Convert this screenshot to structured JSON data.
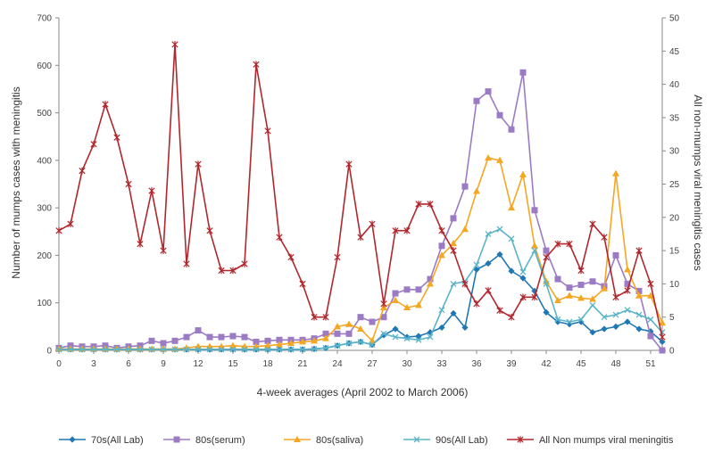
{
  "chart_data": {
    "type": "line",
    "xlabel": "4-week averages (April 2002 to March 2006)",
    "ylabel_left": "Number of mumps cases with meningitis",
    "ylabel_right": "All non-mumps viral meningitis cases",
    "xlim": [
      0,
      52
    ],
    "ylim_left": [
      0,
      700
    ],
    "ylim_right": [
      0,
      50
    ],
    "x_ticks": [
      "0",
      "3",
      "6",
      "9",
      "12",
      "15",
      "18",
      "21",
      "24",
      "27",
      "30",
      "33",
      "36",
      "39",
      "42",
      "45",
      "48",
      "51"
    ],
    "y_left_ticks": [
      "0",
      "100",
      "200",
      "300",
      "400",
      "500",
      "600",
      "700"
    ],
    "y_right_ticks": [
      "0",
      "5",
      "10",
      "15",
      "20",
      "25",
      "30",
      "35",
      "40",
      "45",
      "50"
    ],
    "grid": false,
    "legend_position": "bottom",
    "x": [
      0,
      1,
      2,
      3,
      4,
      5,
      6,
      7,
      8,
      9,
      10,
      11,
      12,
      13,
      14,
      15,
      16,
      17,
      18,
      19,
      20,
      21,
      22,
      23,
      24,
      25,
      26,
      27,
      28,
      29,
      30,
      31,
      32,
      33,
      34,
      35,
      36,
      37,
      38,
      39,
      40,
      41,
      42,
      43,
      44,
      45,
      46,
      47,
      48,
      49,
      50,
      51,
      52
    ],
    "series": [
      {
        "name": "70s(All Lab)",
        "axis": "left",
        "color": "#1f77b4",
        "marker": "diamond",
        "values": [
          2,
          2,
          2,
          2,
          2,
          2,
          2,
          2,
          2,
          2,
          2,
          2,
          2,
          2,
          2,
          2,
          2,
          2,
          2,
          2,
          2,
          2,
          3,
          5,
          10,
          15,
          18,
          12,
          32,
          45,
          28,
          30,
          38,
          48,
          78,
          48,
          170,
          183,
          202,
          167,
          152,
          125,
          80,
          60,
          55,
          60,
          38,
          45,
          50,
          60,
          45,
          40,
          18
        ]
      },
      {
        "name": "80s(serum)",
        "axis": "left",
        "color": "#9b7bc4",
        "marker": "square",
        "values": [
          5,
          10,
          8,
          8,
          10,
          5,
          8,
          10,
          20,
          15,
          20,
          28,
          42,
          28,
          28,
          30,
          28,
          18,
          20,
          22,
          22,
          22,
          25,
          35,
          35,
          35,
          70,
          60,
          70,
          120,
          128,
          128,
          150,
          220,
          278,
          345,
          525,
          545,
          495,
          465,
          585,
          295,
          210,
          150,
          132,
          138,
          145,
          135,
          200,
          140,
          125,
          30,
          0
        ]
      },
      {
        "name": "80s(saliva)",
        "axis": "left",
        "color": "#f5a623",
        "marker": "triangle",
        "values": [
          3,
          3,
          3,
          3,
          3,
          3,
          3,
          3,
          3,
          3,
          3,
          5,
          8,
          8,
          8,
          10,
          8,
          8,
          10,
          12,
          15,
          18,
          20,
          25,
          50,
          55,
          45,
          20,
          90,
          105,
          90,
          95,
          140,
          200,
          225,
          255,
          335,
          405,
          400,
          300,
          370,
          220,
          145,
          105,
          115,
          110,
          108,
          130,
          372,
          170,
          115,
          115,
          58
        ]
      },
      {
        "name": "90s(All Lab)",
        "axis": "left",
        "color": "#5ab4c8",
        "marker": "x",
        "values": [
          2,
          2,
          2,
          2,
          2,
          2,
          2,
          2,
          2,
          2,
          2,
          2,
          2,
          2,
          2,
          2,
          2,
          2,
          2,
          2,
          2,
          2,
          3,
          5,
          10,
          15,
          18,
          12,
          35,
          28,
          25,
          22,
          28,
          85,
          140,
          145,
          180,
          245,
          255,
          235,
          165,
          210,
          140,
          65,
          60,
          65,
          95,
          70,
          75,
          85,
          75,
          65,
          38
        ]
      },
      {
        "name": "All Non mumps viral meningitis",
        "axis": "right",
        "color": "#b0272d",
        "marker": "star",
        "values": [
          18,
          19,
          27,
          31,
          37,
          32,
          25,
          16,
          24,
          15,
          46,
          13,
          28,
          18,
          12,
          12,
          13,
          43,
          33,
          17,
          14,
          10,
          5,
          5,
          14,
          28,
          17,
          19,
          7,
          18,
          18,
          22,
          22,
          18,
          15,
          10,
          7,
          9,
          6,
          5,
          8,
          8,
          14,
          16,
          16,
          12,
          19,
          17,
          8,
          9,
          15,
          10,
          2
        ]
      }
    ]
  }
}
